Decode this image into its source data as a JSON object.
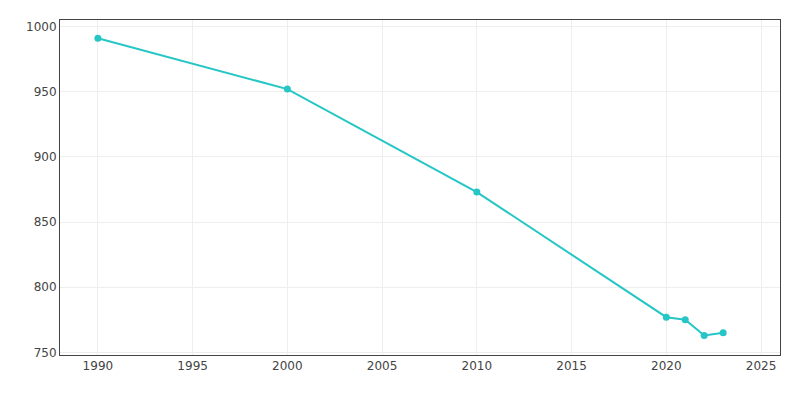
{
  "chart_data": {
    "type": "line",
    "x": [
      1990,
      2000,
      2010,
      2020,
      2021,
      2022,
      2023
    ],
    "values": [
      991,
      952,
      873,
      777,
      775,
      763,
      765
    ],
    "color": "#26c6c6",
    "marker": "circle",
    "xlim": [
      1988,
      2026
    ],
    "ylim": [
      748,
      1005
    ],
    "xticks": [
      1990,
      1995,
      2000,
      2005,
      2010,
      2015,
      2020,
      2025
    ],
    "yticks": [
      750,
      800,
      850,
      900,
      950,
      1000
    ],
    "grid": true
  }
}
